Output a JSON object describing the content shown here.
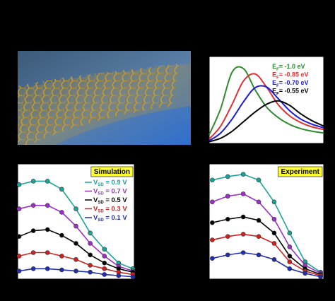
{
  "chart_data": [
    {
      "type": "line",
      "smooth": true,
      "markers": false,
      "legend": "top-right",
      "legend_lines": false,
      "x": [
        0,
        1,
        2,
        3,
        4,
        5,
        6,
        7,
        8,
        9,
        10
      ],
      "xlim": [
        0,
        10
      ],
      "ylim": [
        0,
        100
      ],
      "series": [
        {
          "name": [
            "E",
            "F",
            "= -1.0  eV"
          ],
          "color": "#2e8b2e",
          "values": [
            10,
            40,
            82,
            86,
            62,
            42,
            30,
            22,
            17,
            14,
            12
          ]
        },
        {
          "name": [
            "E",
            "F",
            "= -0.85 eV"
          ],
          "color": "#e03030",
          "values": [
            5,
            20,
            45,
            72,
            80,
            65,
            45,
            32,
            24,
            19,
            16
          ]
        },
        {
          "name": [
            "E",
            "F",
            "= -0.70 eV"
          ],
          "color": "#1a1adb",
          "values": [
            3,
            12,
            28,
            48,
            64,
            65,
            52,
            38,
            28,
            22,
            18
          ]
        },
        {
          "name": [
            "E",
            "F",
            "= -0.55 eV"
          ],
          "color": "#000000",
          "values": [
            2,
            6,
            14,
            25,
            36,
            45,
            49,
            44,
            34,
            26,
            20
          ]
        }
      ]
    },
    {
      "type": "line",
      "smooth": false,
      "markers": true,
      "legend": "top-right",
      "legend_lines": true,
      "annotation": "Simulation",
      "annotation_color": "#ffff33",
      "x": [
        1,
        2,
        3,
        4,
        5,
        6,
        7,
        8,
        9
      ],
      "xlim": [
        0.9,
        9.1
      ],
      "ylim": [
        0,
        100
      ],
      "series": [
        {
          "name": [
            "V",
            "SD",
            " = 0.9 V"
          ],
          "color": "#1aa39a",
          "values": [
            82,
            85,
            85,
            78,
            61,
            40,
            26,
            14,
            9
          ]
        },
        {
          "name": [
            "V",
            "SD",
            " = 0.7 V"
          ],
          "color": "#9b30c8",
          "values": [
            61,
            64,
            64,
            58,
            46,
            31,
            20,
            11,
            7
          ]
        },
        {
          "name": [
            "V",
            "SD",
            " = 0.5 V"
          ],
          "color": "#000000",
          "values": [
            37,
            42,
            43,
            38,
            31,
            21,
            14,
            9,
            6
          ]
        },
        {
          "name": [
            "V",
            "SD",
            " = 0.3 V"
          ],
          "color": "#d02020",
          "values": [
            20,
            23,
            23,
            20,
            17,
            12,
            9,
            6,
            4
          ]
        },
        {
          "name": [
            "V",
            "SD",
            " = 0.1 V"
          ],
          "color": "#1f2fb0",
          "values": [
            7,
            9,
            9,
            8,
            7,
            6,
            4,
            3,
            2
          ]
        }
      ]
    },
    {
      "type": "line",
      "smooth": false,
      "markers": true,
      "annotation": "Experiment",
      "annotation_color": "#ffff33",
      "x": [
        1,
        2,
        3,
        4,
        5,
        6,
        7,
        8
      ],
      "xlim": [
        0.8,
        8.2
      ],
      "ylim": [
        0,
        100
      ],
      "series": [
        {
          "color": "#1aa39a",
          "values": [
            86,
            89,
            91,
            86,
            67,
            40,
            15,
            6
          ]
        },
        {
          "color": "#9b30c8",
          "values": [
            67,
            72,
            74,
            67,
            52,
            28,
            12,
            5
          ]
        },
        {
          "color": "#000000",
          "values": [
            49,
            52,
            54,
            51,
            40,
            20,
            9,
            4
          ]
        },
        {
          "color": "#d02020",
          "values": [
            34,
            37,
            39,
            37,
            31,
            15,
            7,
            3
          ]
        },
        {
          "color": "#1f2fb0",
          "values": [
            18,
            21,
            23,
            21,
            17,
            9,
            5,
            2
          ]
        }
      ]
    }
  ]
}
